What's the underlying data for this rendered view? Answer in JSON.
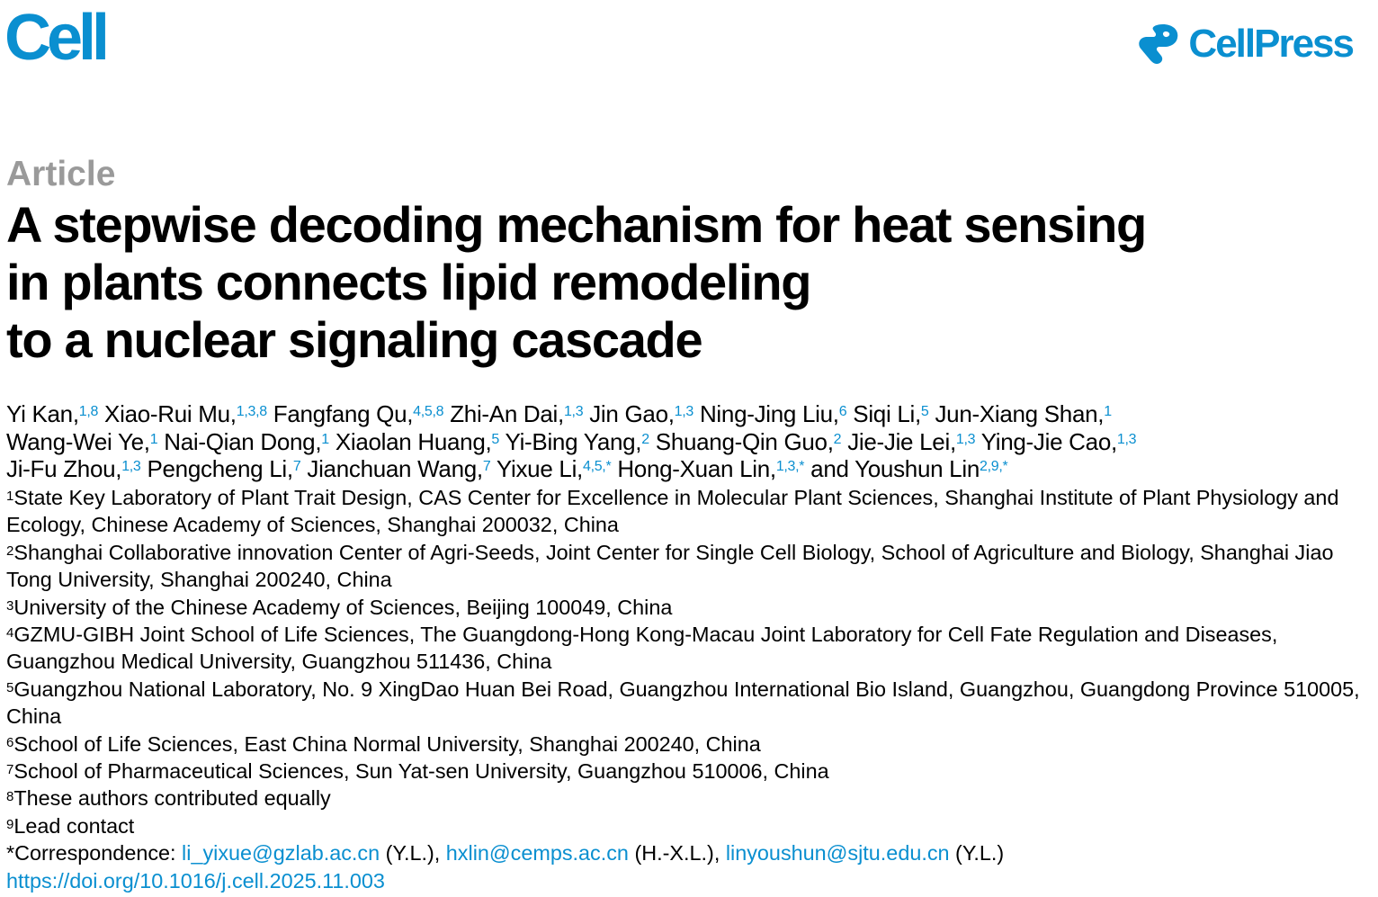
{
  "journal_logo": "Cell",
  "publisher_logo": "CellPress",
  "colors": {
    "brand": "#0a8fd0",
    "article_type": "#9a9a9a"
  },
  "article_type": "Article",
  "title_lines": [
    "A stepwise decoding mechanism for heat sensing",
    "in plants connects lipid remodeling",
    "to a nuclear signaling cascade"
  ],
  "author_lines": [
    [
      {
        "name": "Yi Kan,",
        "sup": "1,8"
      },
      {
        "name": "Xiao-Rui Mu,",
        "sup": "1,3,8"
      },
      {
        "name": "Fangfang Qu,",
        "sup": "4,5,8"
      },
      {
        "name": "Zhi-An Dai,",
        "sup": "1,3"
      },
      {
        "name": "Jin Gao,",
        "sup": "1,3"
      },
      {
        "name": "Ning-Jing Liu,",
        "sup": "6"
      },
      {
        "name": "Siqi Li,",
        "sup": "5"
      },
      {
        "name": "Jun-Xiang Shan,",
        "sup": "1"
      }
    ],
    [
      {
        "name": "Wang-Wei Ye,",
        "sup": "1"
      },
      {
        "name": "Nai-Qian Dong,",
        "sup": "1"
      },
      {
        "name": "Xiaolan Huang,",
        "sup": "5"
      },
      {
        "name": "Yi-Bing Yang,",
        "sup": "2"
      },
      {
        "name": "Shuang-Qin Guo,",
        "sup": "2"
      },
      {
        "name": "Jie-Jie Lei,",
        "sup": "1,3"
      },
      {
        "name": "Ying-Jie Cao,",
        "sup": "1,3"
      }
    ],
    [
      {
        "name": "Ji-Fu Zhou,",
        "sup": "1,3"
      },
      {
        "name": "Pengcheng Li,",
        "sup": "7"
      },
      {
        "name": "Jianchuan Wang,",
        "sup": "7"
      },
      {
        "name": "Yixue Li,",
        "sup": "4,5,*"
      },
      {
        "name": "Hong-Xuan Lin,",
        "sup": "1,3,*"
      },
      {
        "name": "and Youshun Lin",
        "sup": "2,9,*"
      }
    ]
  ],
  "affiliations": [
    {
      "num": "1",
      "text": "State Key Laboratory of Plant Trait Design, CAS Center for Excellence in Molecular Plant Sciences, Shanghai Institute of Plant Physiology and Ecology, Chinese Academy of Sciences, Shanghai 200032, China"
    },
    {
      "num": "2",
      "text": "Shanghai Collaborative innovation Center of Agri-Seeds, Joint Center for Single Cell Biology, School of Agriculture and Biology, Shanghai Jiao Tong University, Shanghai 200240, China"
    },
    {
      "num": "3",
      "text": "University of the Chinese Academy of Sciences, Beijing 100049, China"
    },
    {
      "num": "4",
      "text": "GZMU-GIBH Joint School of Life Sciences, The Guangdong-Hong Kong-Macau Joint Laboratory for Cell Fate Regulation and Diseases, Guangzhou Medical University, Guangzhou 511436, China"
    },
    {
      "num": "5",
      "text": "Guangzhou National Laboratory, No. 9 XingDao Huan Bei Road, Guangzhou International Bio Island, Guangzhou, Guangdong Province 510005, China"
    },
    {
      "num": "6",
      "text": "School of Life Sciences, East China Normal University, Shanghai 200240, China"
    },
    {
      "num": "7",
      "text": "School of Pharmaceutical Sciences, Sun Yat-sen University, Guangzhou 510006, China"
    },
    {
      "num": "8",
      "text": "These authors contributed equally"
    },
    {
      "num": "9",
      "text": "Lead contact"
    }
  ],
  "correspondence": {
    "label": "*Correspondence: ",
    "entries": [
      {
        "email": "li_yixue@gzlab.ac.cn",
        "initials": " (Y.L.), "
      },
      {
        "email": "hxlin@cemps.ac.cn",
        "initials": " (H.-X.L.), "
      },
      {
        "email": "linyoushun@sjtu.edu.cn",
        "initials": " (Y.L.)"
      }
    ]
  },
  "doi": "https://doi.org/10.1016/j.cell.2025.11.003"
}
